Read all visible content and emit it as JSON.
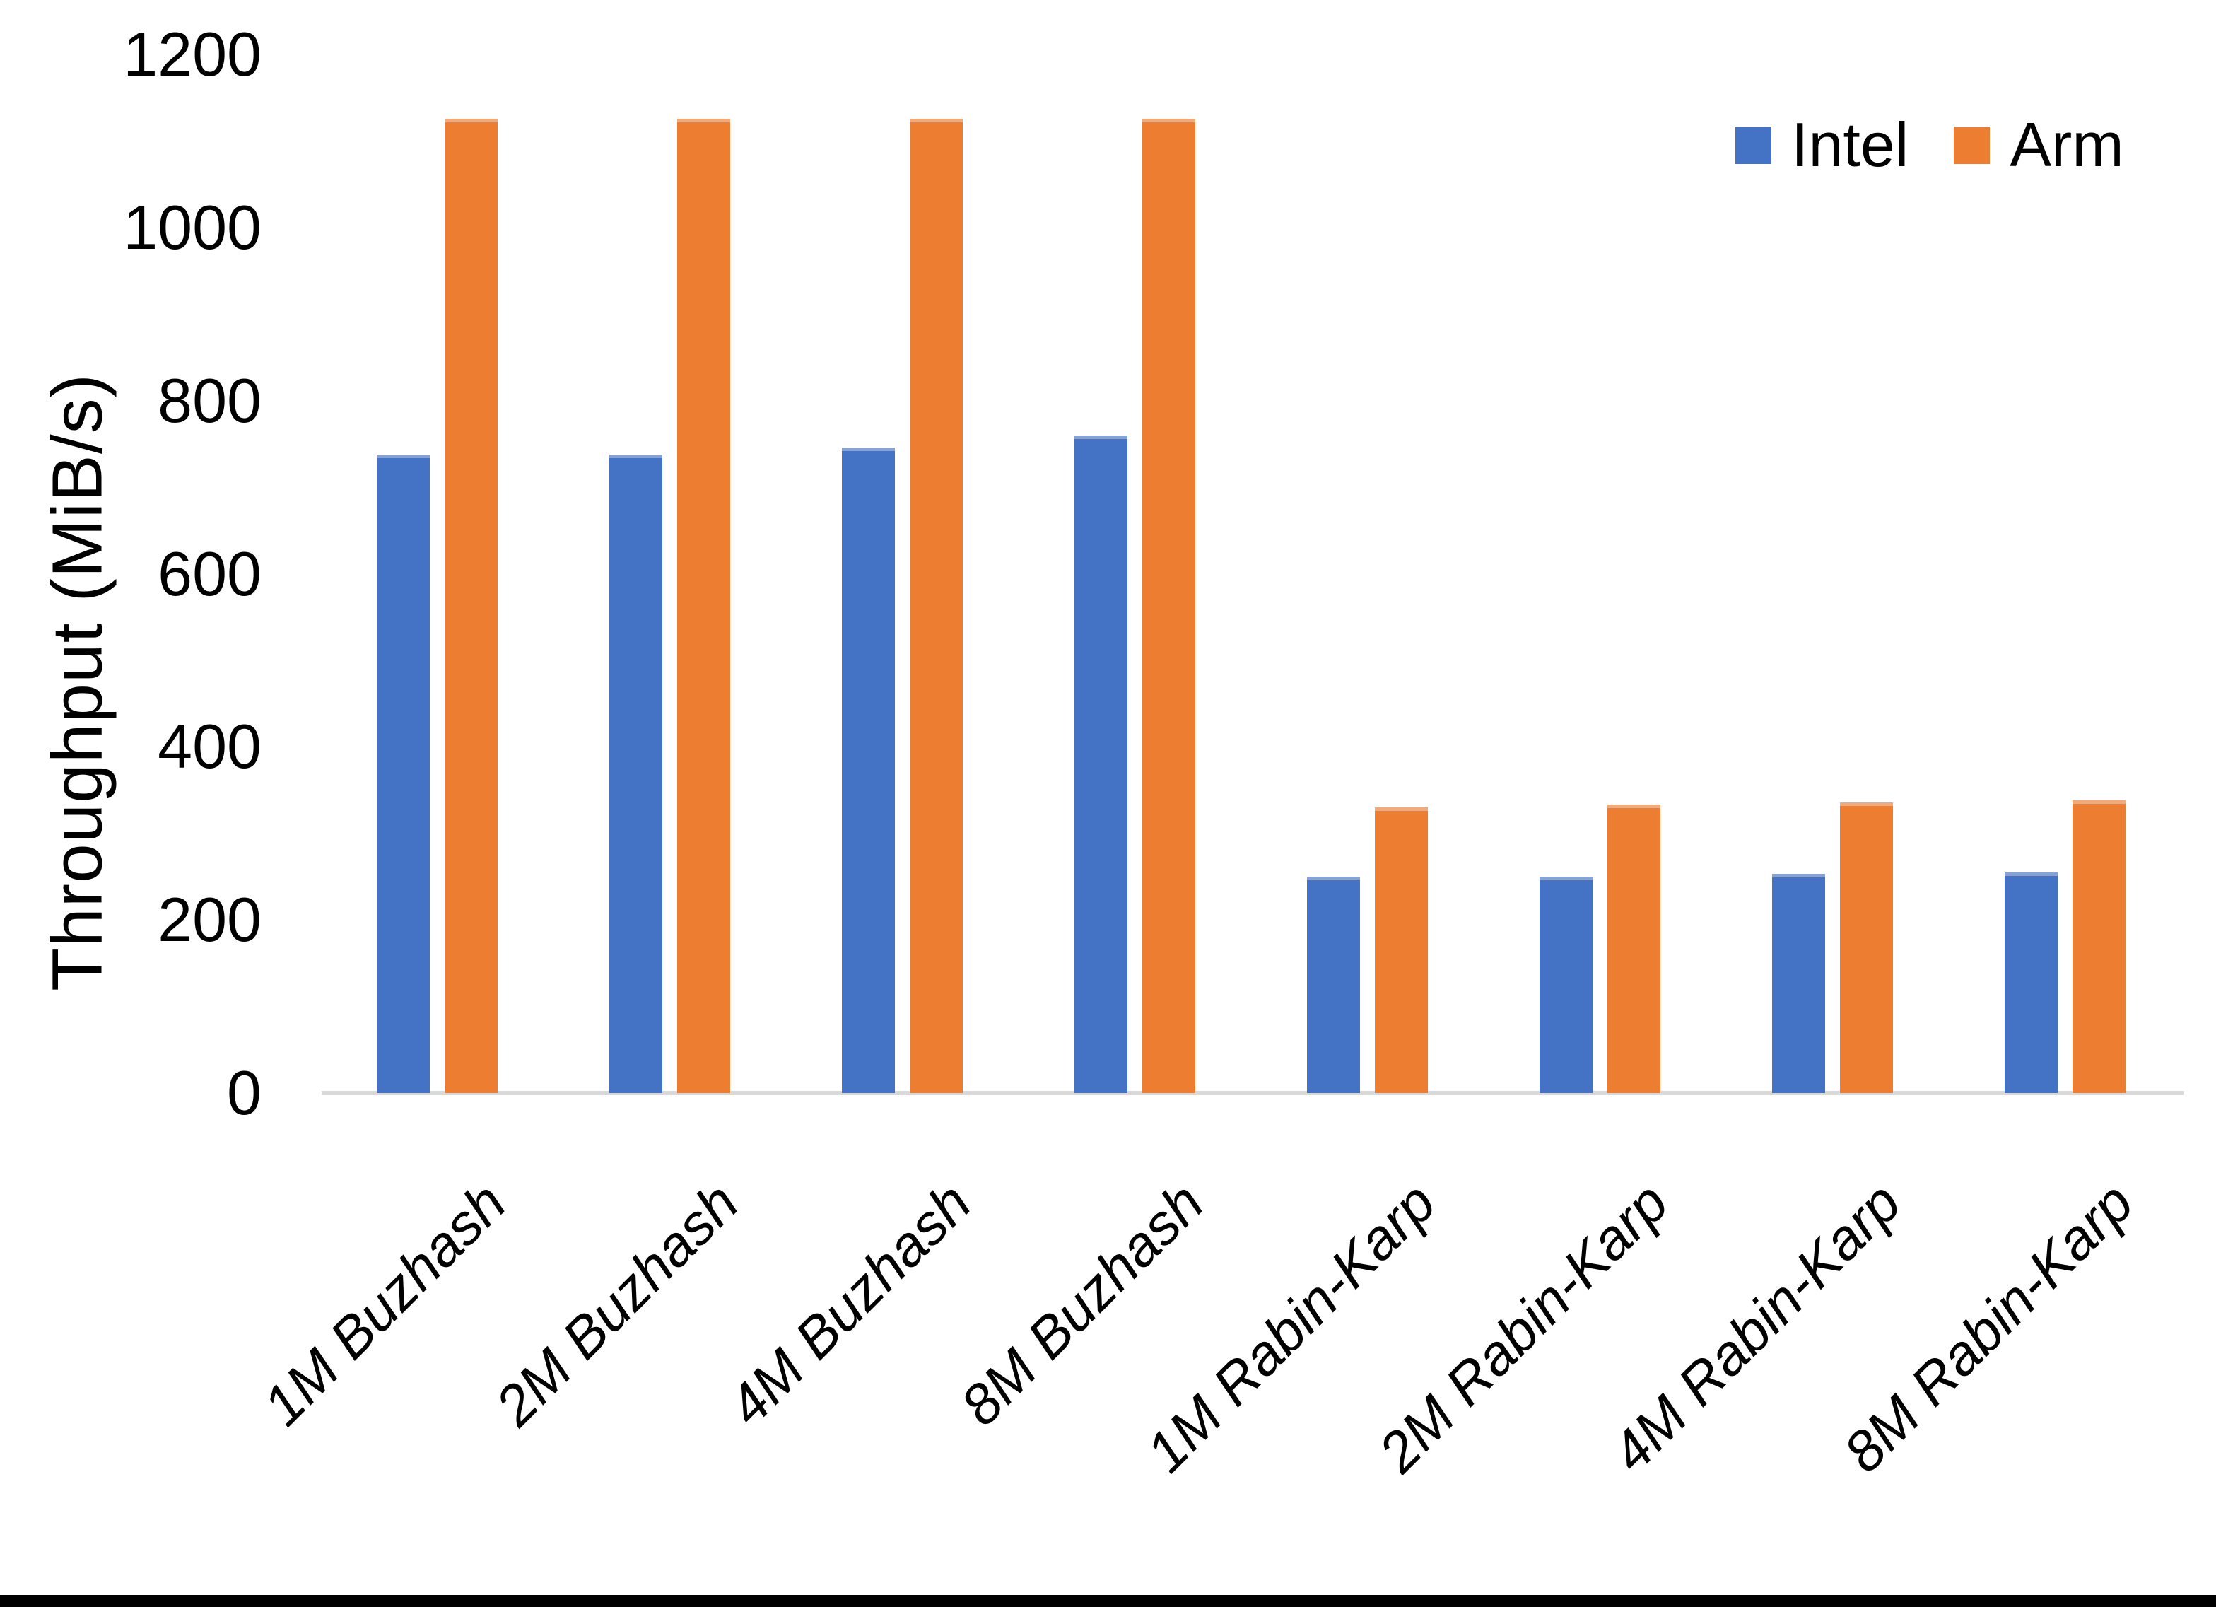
{
  "chart_data": {
    "type": "bar",
    "title": "",
    "xlabel": "",
    "ylabel": "Throughput (MiB/s)",
    "ylim": [
      0,
      1200
    ],
    "yticks": [
      0,
      200,
      400,
      600,
      800,
      1000,
      1200
    ],
    "grid": false,
    "legend_position": "top-right",
    "categories": [
      "1M Buzhash",
      "2M Buzhash",
      "4M Buzhash",
      "8M Buzhash",
      "1M Rabin-Karp",
      "2M Rabin-Karp",
      "4M Rabin-Karp",
      "8M Rabin-Karp"
    ],
    "series": [
      {
        "name": "Intel",
        "color": "#4472C4",
        "values": [
          738,
          738,
          746,
          760,
          250,
          250,
          253,
          255
        ]
      },
      {
        "name": "Arm",
        "color": "#ED7D31",
        "values": [
          1126,
          1126,
          1126,
          1126,
          330,
          333,
          336,
          338
        ]
      }
    ]
  },
  "colors": {
    "background": "#FFFFFF",
    "axis_line": "#D9D9D9",
    "text": "#000000",
    "frame_bar": "#000000"
  }
}
